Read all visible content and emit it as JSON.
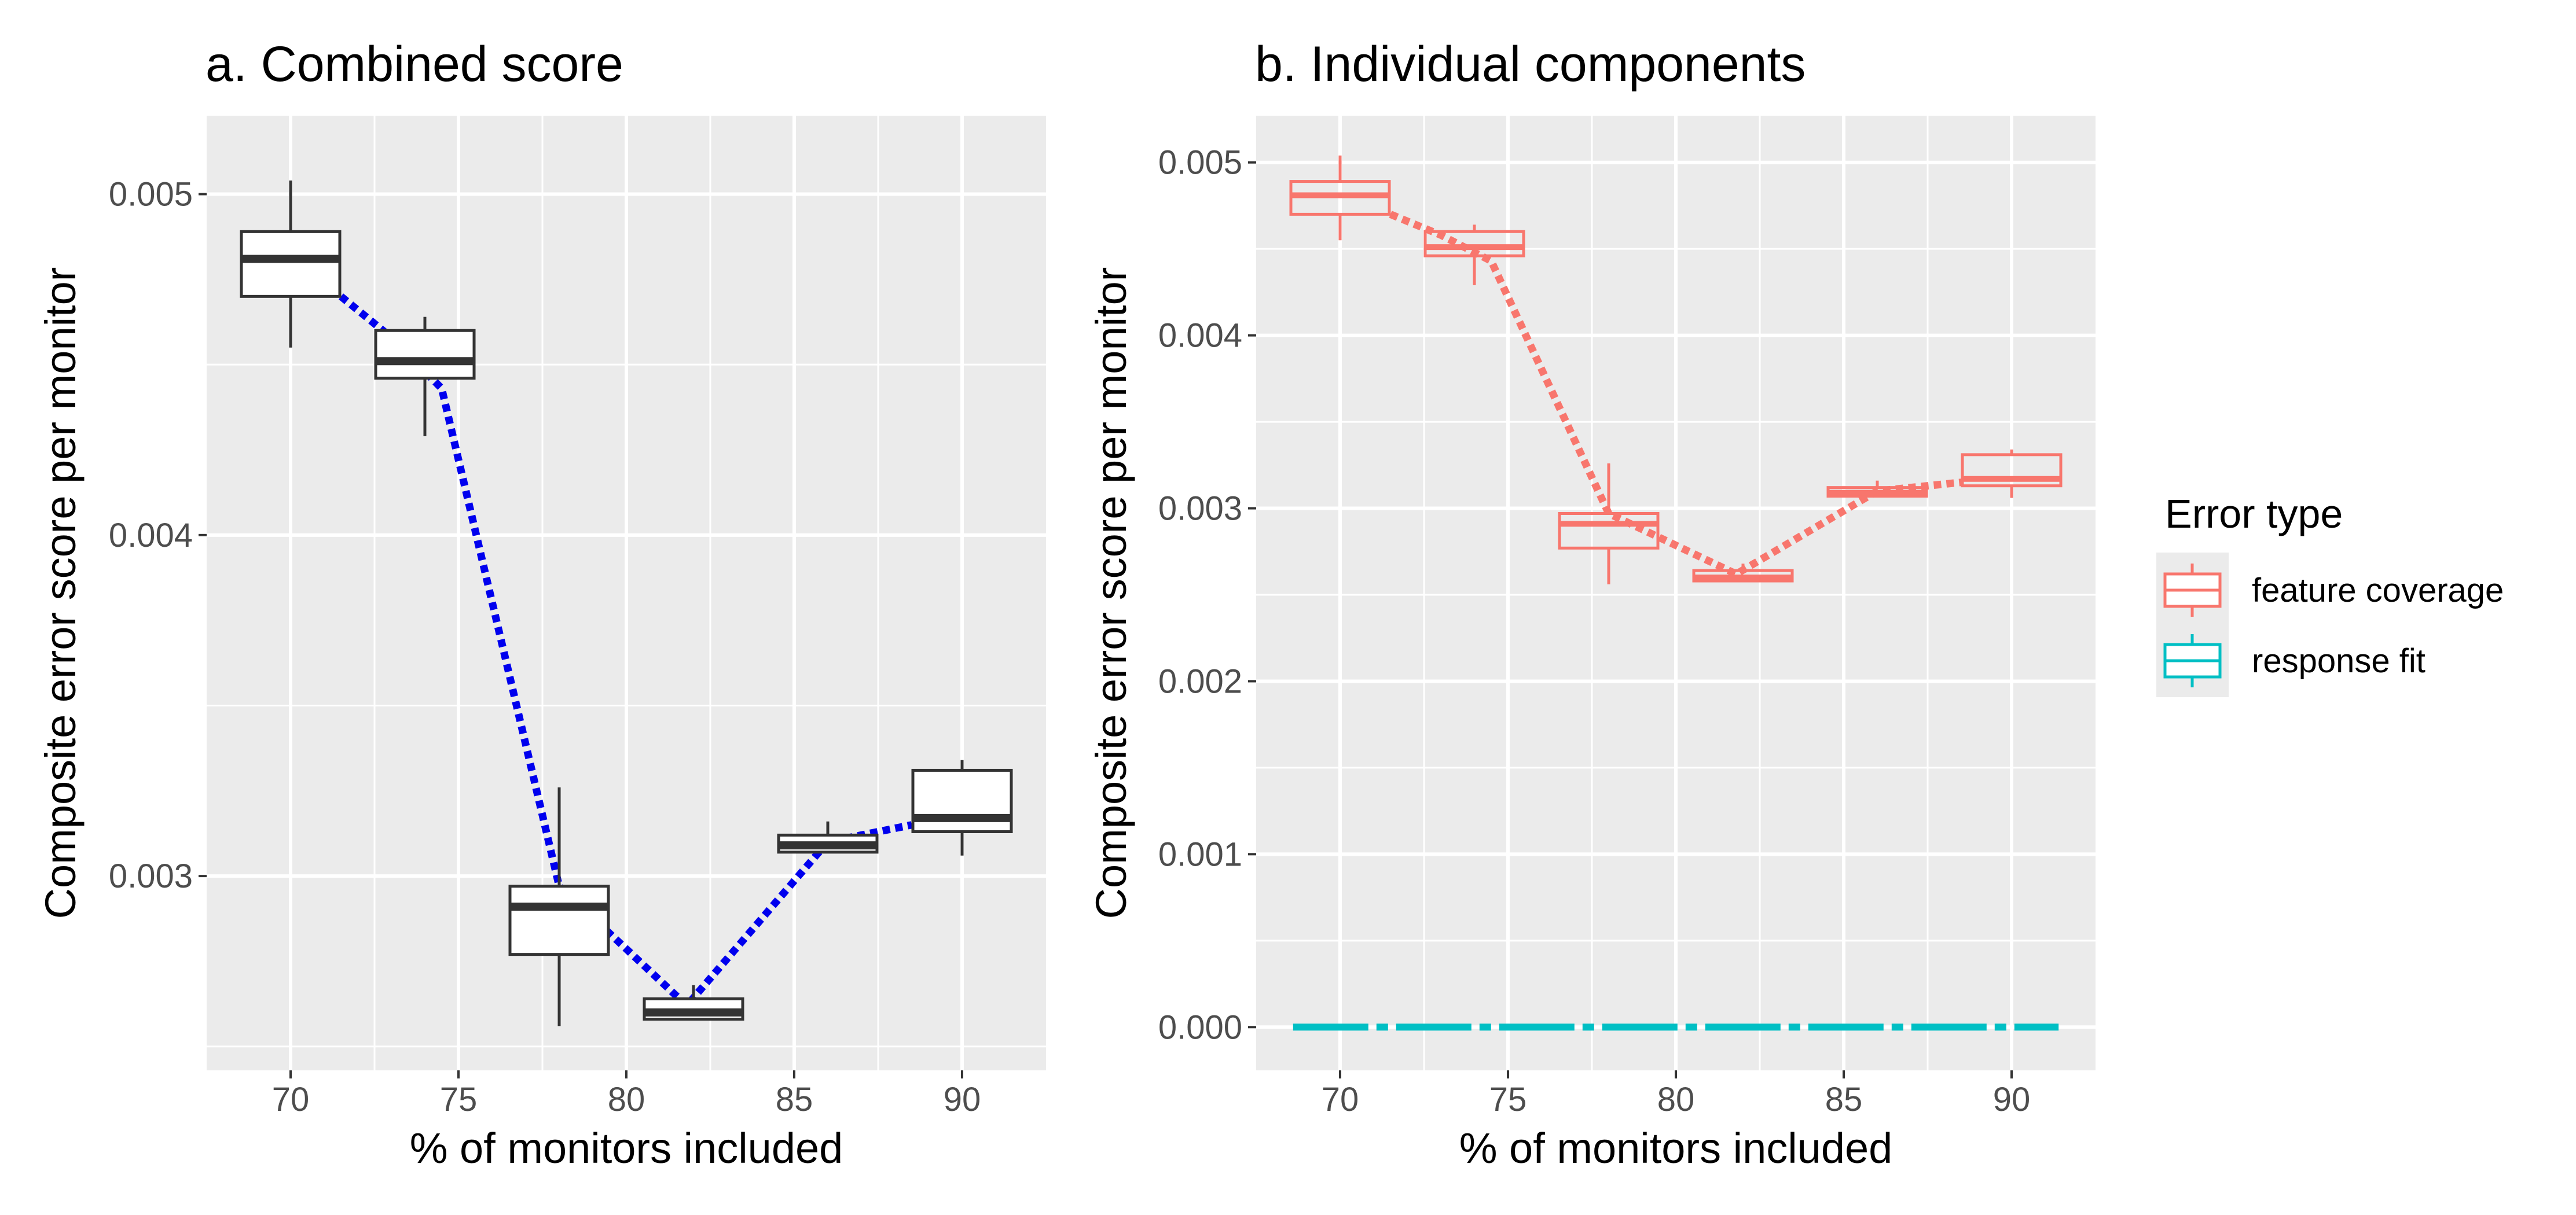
{
  "chart_data": [
    {
      "type": "box",
      "title": "a. Combined score",
      "xlabel": "% of monitors included",
      "ylabel": "Composite error score per monitor",
      "xlim": [
        67.5,
        92.5
      ],
      "ylim": [
        0.00243,
        0.00523
      ],
      "x_ticks": [
        70,
        75,
        80,
        85,
        90
      ],
      "x_tick_labels": [
        "70",
        "75",
        "80",
        "85",
        "90"
      ],
      "y_ticks": [
        0.003,
        0.004,
        0.005
      ],
      "y_tick_labels": [
        "0.003",
        "0.004",
        "0.005"
      ],
      "grid": true,
      "series": [
        {
          "color": "#333333",
          "fill": "#ffffff",
          "line_color": "#0000ee",
          "boxes": [
            {
              "x": 70,
              "min": 0.00455,
              "q1": 0.0047,
              "median": 0.00481,
              "q3": 0.00489,
              "max": 0.00504
            },
            {
              "x": 74,
              "min": 0.00429,
              "q1": 0.00446,
              "median": 0.00451,
              "q3": 0.0046,
              "max": 0.00464
            },
            {
              "x": 78,
              "min": 0.00256,
              "q1": 0.00277,
              "median": 0.00291,
              "q3": 0.00297,
              "max": 0.00326
            },
            {
              "x": 82,
              "min": 0.00258,
              "q1": 0.00258,
              "median": 0.0026,
              "q3": 0.00264,
              "max": 0.00268
            },
            {
              "x": 86,
              "min": 0.00307,
              "q1": 0.00307,
              "median": 0.00309,
              "q3": 0.00312,
              "max": 0.00316
            },
            {
              "x": 90,
              "min": 0.00306,
              "q1": 0.00313,
              "median": 0.00317,
              "q3": 0.00331,
              "max": 0.00334
            }
          ],
          "line_points": [
            [
              71.5,
              0.0047
            ],
            [
              73.0,
              0.00458
            ],
            [
              74.5,
              0.00443
            ],
            [
              78.0,
              0.00297
            ],
            [
              81.8,
              0.00262
            ],
            [
              86.0,
              0.0031
            ],
            [
              88.5,
              0.00315
            ]
          ]
        }
      ]
    },
    {
      "type": "box",
      "title": "b. Individual components",
      "xlabel": "% of monitors included",
      "ylabel": "Composite error score per monitor",
      "xlim": [
        67.5,
        92.5
      ],
      "ylim": [
        -0.00025,
        0.00527
      ],
      "x_ticks": [
        70,
        75,
        80,
        85,
        90
      ],
      "x_tick_labels": [
        "70",
        "75",
        "80",
        "85",
        "90"
      ],
      "y_ticks": [
        0.0,
        0.001,
        0.002,
        0.003,
        0.004,
        0.005
      ],
      "y_tick_labels": [
        "0.000",
        "0.001",
        "0.002",
        "0.003",
        "0.004",
        "0.005"
      ],
      "grid": true,
      "legend_position": "right",
      "legend_title": "Error type",
      "series": [
        {
          "name": "feature coverage",
          "color": "#f8766d",
          "boxes": [
            {
              "x": 70,
              "min": 0.00455,
              "q1": 0.0047,
              "median": 0.00481,
              "q3": 0.00489,
              "max": 0.00504
            },
            {
              "x": 74,
              "min": 0.00429,
              "q1": 0.00446,
              "median": 0.00451,
              "q3": 0.0046,
              "max": 0.00464
            },
            {
              "x": 78,
              "min": 0.00256,
              "q1": 0.00277,
              "median": 0.00291,
              "q3": 0.00297,
              "max": 0.00326
            },
            {
              "x": 82,
              "min": 0.00258,
              "q1": 0.00258,
              "median": 0.0026,
              "q3": 0.00264,
              "max": 0.00268
            },
            {
              "x": 86,
              "min": 0.00307,
              "q1": 0.00307,
              "median": 0.00309,
              "q3": 0.00312,
              "max": 0.00316
            },
            {
              "x": 90,
              "min": 0.00306,
              "q1": 0.00313,
              "median": 0.00317,
              "q3": 0.00331,
              "max": 0.00334
            }
          ],
          "line_points": [
            [
              71.5,
              0.0047
            ],
            [
              73.0,
              0.00458
            ],
            [
              74.5,
              0.00443
            ],
            [
              78.0,
              0.00297
            ],
            [
              81.8,
              0.00262
            ],
            [
              86.0,
              0.0031
            ],
            [
              88.5,
              0.00315
            ]
          ]
        },
        {
          "name": "response fit",
          "color": "#00bfc4",
          "boxes": [
            {
              "x": 70,
              "min": 0.0,
              "q1": 0.0,
              "median": 0.0,
              "q3": 0.0,
              "max": 0.0
            },
            {
              "x": 74,
              "min": 0.0,
              "q1": 0.0,
              "median": 0.0,
              "q3": 0.0,
              "max": 0.0
            },
            {
              "x": 78,
              "min": 0.0,
              "q1": 0.0,
              "median": 0.0,
              "q3": 0.0,
              "max": 0.0
            },
            {
              "x": 82,
              "min": 0.0,
              "q1": 0.0,
              "median": 0.0,
              "q3": 0.0,
              "max": 0.0
            },
            {
              "x": 86,
              "min": 0.0,
              "q1": 0.0,
              "median": 0.0,
              "q3": 0.0,
              "max": 0.0
            },
            {
              "x": 90,
              "min": 0.0,
              "q1": 0.0,
              "median": 0.0,
              "q3": 0.0,
              "max": 0.0
            }
          ],
          "line_points": [
            [
              68.6,
              0.0
            ],
            [
              91.4,
              0.0
            ]
          ]
        }
      ]
    }
  ]
}
